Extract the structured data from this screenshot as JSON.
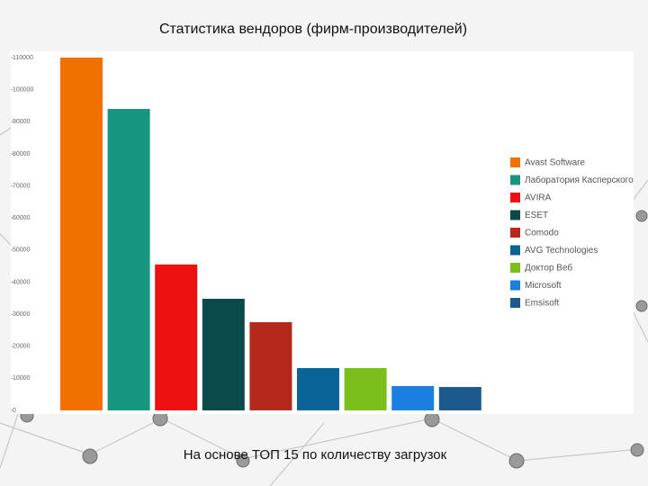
{
  "chart_data": {
    "type": "bar",
    "title": "Статистика вендоров (фирм-производителей)",
    "footnote": "На основе ТОП 15 по количеству загрузок",
    "categories": [
      "Avast Software",
      "Лаборатория Касперского",
      "AVIRA",
      "ESET",
      "Comodo",
      "AVG Technologies",
      "Доктор Веб",
      "Microsoft",
      "Emsisoft"
    ],
    "values": [
      110000,
      94000,
      45500,
      34800,
      27500,
      13200,
      13200,
      7600,
      7300
    ],
    "colors": [
      "#f07000",
      "#169680",
      "#ee1111",
      "#0b4a4a",
      "#b5281c",
      "#0a6496",
      "#7cbe1c",
      "#1c7ee0",
      "#1c5a8e"
    ],
    "ylim": [
      0,
      110000
    ],
    "yticks": [
      0,
      10000,
      20000,
      30000,
      40000,
      50000,
      60000,
      70000,
      80000,
      90000,
      100000,
      110000
    ],
    "legend": "right"
  }
}
